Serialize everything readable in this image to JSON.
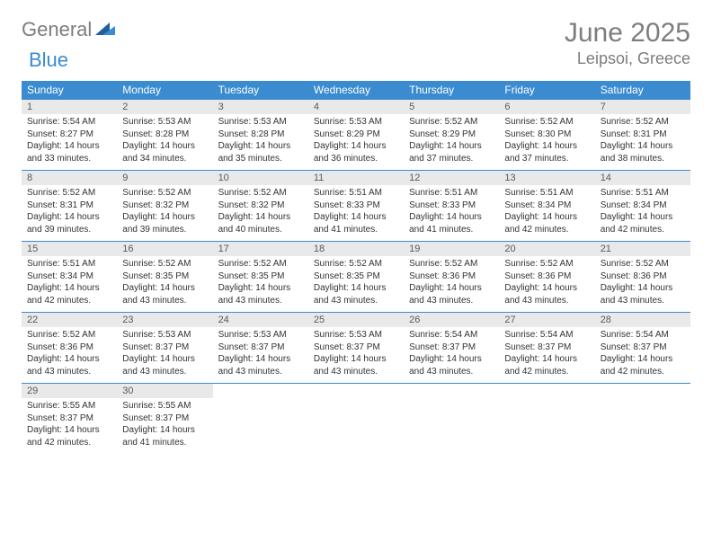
{
  "brand": {
    "part1": "General",
    "part2": "Blue"
  },
  "title": "June 2025",
  "location": "Leipsoi, Greece",
  "colors": {
    "accent": "#3a8bd0",
    "header_bg": "#3a8bd0",
    "header_text": "#ffffff",
    "daynum_bg": "#e9e9e9",
    "text_gray": "#7d7d7d",
    "body_text": "#333333",
    "background": "#ffffff"
  },
  "typography": {
    "title_fontsize": 30,
    "location_fontsize": 18,
    "dow_fontsize": 12,
    "daynum_fontsize": 11,
    "body_fontsize": 10
  },
  "daysOfWeek": [
    "Sunday",
    "Monday",
    "Tuesday",
    "Wednesday",
    "Thursday",
    "Friday",
    "Saturday"
  ],
  "weeks": [
    [
      {
        "n": "1",
        "sr": "5:54 AM",
        "ss": "8:27 PM",
        "dl": "14 hours and 33 minutes."
      },
      {
        "n": "2",
        "sr": "5:53 AM",
        "ss": "8:28 PM",
        "dl": "14 hours and 34 minutes."
      },
      {
        "n": "3",
        "sr": "5:53 AM",
        "ss": "8:28 PM",
        "dl": "14 hours and 35 minutes."
      },
      {
        "n": "4",
        "sr": "5:53 AM",
        "ss": "8:29 PM",
        "dl": "14 hours and 36 minutes."
      },
      {
        "n": "5",
        "sr": "5:52 AM",
        "ss": "8:29 PM",
        "dl": "14 hours and 37 minutes."
      },
      {
        "n": "6",
        "sr": "5:52 AM",
        "ss": "8:30 PM",
        "dl": "14 hours and 37 minutes."
      },
      {
        "n": "7",
        "sr": "5:52 AM",
        "ss": "8:31 PM",
        "dl": "14 hours and 38 minutes."
      }
    ],
    [
      {
        "n": "8",
        "sr": "5:52 AM",
        "ss": "8:31 PM",
        "dl": "14 hours and 39 minutes."
      },
      {
        "n": "9",
        "sr": "5:52 AM",
        "ss": "8:32 PM",
        "dl": "14 hours and 39 minutes."
      },
      {
        "n": "10",
        "sr": "5:52 AM",
        "ss": "8:32 PM",
        "dl": "14 hours and 40 minutes."
      },
      {
        "n": "11",
        "sr": "5:51 AM",
        "ss": "8:33 PM",
        "dl": "14 hours and 41 minutes."
      },
      {
        "n": "12",
        "sr": "5:51 AM",
        "ss": "8:33 PM",
        "dl": "14 hours and 41 minutes."
      },
      {
        "n": "13",
        "sr": "5:51 AM",
        "ss": "8:34 PM",
        "dl": "14 hours and 42 minutes."
      },
      {
        "n": "14",
        "sr": "5:51 AM",
        "ss": "8:34 PM",
        "dl": "14 hours and 42 minutes."
      }
    ],
    [
      {
        "n": "15",
        "sr": "5:51 AM",
        "ss": "8:34 PM",
        "dl": "14 hours and 42 minutes."
      },
      {
        "n": "16",
        "sr": "5:52 AM",
        "ss": "8:35 PM",
        "dl": "14 hours and 43 minutes."
      },
      {
        "n": "17",
        "sr": "5:52 AM",
        "ss": "8:35 PM",
        "dl": "14 hours and 43 minutes."
      },
      {
        "n": "18",
        "sr": "5:52 AM",
        "ss": "8:35 PM",
        "dl": "14 hours and 43 minutes."
      },
      {
        "n": "19",
        "sr": "5:52 AM",
        "ss": "8:36 PM",
        "dl": "14 hours and 43 minutes."
      },
      {
        "n": "20",
        "sr": "5:52 AM",
        "ss": "8:36 PM",
        "dl": "14 hours and 43 minutes."
      },
      {
        "n": "21",
        "sr": "5:52 AM",
        "ss": "8:36 PM",
        "dl": "14 hours and 43 minutes."
      }
    ],
    [
      {
        "n": "22",
        "sr": "5:52 AM",
        "ss": "8:36 PM",
        "dl": "14 hours and 43 minutes."
      },
      {
        "n": "23",
        "sr": "5:53 AM",
        "ss": "8:37 PM",
        "dl": "14 hours and 43 minutes."
      },
      {
        "n": "24",
        "sr": "5:53 AM",
        "ss": "8:37 PM",
        "dl": "14 hours and 43 minutes."
      },
      {
        "n": "25",
        "sr": "5:53 AM",
        "ss": "8:37 PM",
        "dl": "14 hours and 43 minutes."
      },
      {
        "n": "26",
        "sr": "5:54 AM",
        "ss": "8:37 PM",
        "dl": "14 hours and 43 minutes."
      },
      {
        "n": "27",
        "sr": "5:54 AM",
        "ss": "8:37 PM",
        "dl": "14 hours and 42 minutes."
      },
      {
        "n": "28",
        "sr": "5:54 AM",
        "ss": "8:37 PM",
        "dl": "14 hours and 42 minutes."
      }
    ],
    [
      {
        "n": "29",
        "sr": "5:55 AM",
        "ss": "8:37 PM",
        "dl": "14 hours and 42 minutes."
      },
      {
        "n": "30",
        "sr": "5:55 AM",
        "ss": "8:37 PM",
        "dl": "14 hours and 41 minutes."
      },
      null,
      null,
      null,
      null,
      null
    ]
  ],
  "labels": {
    "sunrise": "Sunrise:",
    "sunset": "Sunset:",
    "daylight": "Daylight:"
  }
}
